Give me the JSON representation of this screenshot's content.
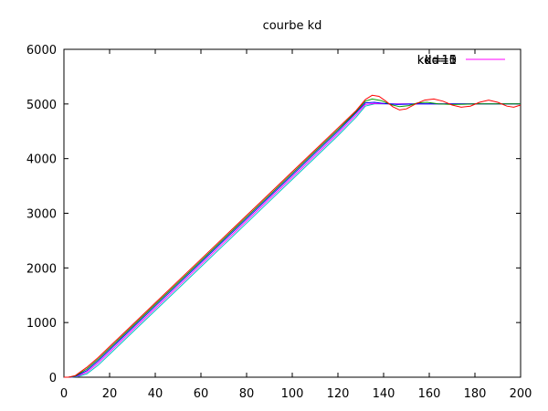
{
  "chart_data": {
    "type": "line",
    "title": "courbe kd",
    "xlabel": "",
    "ylabel": "",
    "xlim": [
      0,
      200
    ],
    "ylim": [
      0,
      6000
    ],
    "x_ticks": [
      0,
      20,
      40,
      60,
      80,
      100,
      120,
      140,
      160,
      180,
      200
    ],
    "y_ticks": [
      0,
      1000,
      2000,
      3000,
      4000,
      5000,
      6000
    ],
    "grid": false,
    "legend_position": "top-right",
    "legend_overlapping_labels": [
      "kd=1",
      "kd=5",
      "kd=10",
      "kd=15"
    ],
    "series": [
      {
        "name": "kd=1",
        "color": "#ff0000",
        "points": [
          [
            0,
            0
          ],
          [
            2,
            0
          ],
          [
            5,
            30
          ],
          [
            10,
            180
          ],
          [
            15,
            360
          ],
          [
            20,
            560
          ],
          [
            30,
            960
          ],
          [
            40,
            1360
          ],
          [
            50,
            1760
          ],
          [
            60,
            2160
          ],
          [
            70,
            2560
          ],
          [
            80,
            2960
          ],
          [
            90,
            3360
          ],
          [
            100,
            3760
          ],
          [
            110,
            4160
          ],
          [
            120,
            4560
          ],
          [
            128,
            4880
          ],
          [
            132,
            5080
          ],
          [
            135,
            5160
          ],
          [
            138,
            5140
          ],
          [
            141,
            5050
          ],
          [
            144,
            4950
          ],
          [
            147,
            4890
          ],
          [
            150,
            4910
          ],
          [
            154,
            5000
          ],
          [
            158,
            5070
          ],
          [
            162,
            5090
          ],
          [
            166,
            5050
          ],
          [
            170,
            4980
          ],
          [
            174,
            4940
          ],
          [
            178,
            4960
          ],
          [
            182,
            5030
          ],
          [
            186,
            5070
          ],
          [
            190,
            5030
          ],
          [
            194,
            4960
          ],
          [
            197,
            4940
          ],
          [
            200,
            4980
          ]
        ]
      },
      {
        "name": "kd=5",
        "color": "#00a000",
        "points": [
          [
            0,
            0
          ],
          [
            2,
            0
          ],
          [
            5,
            20
          ],
          [
            10,
            150
          ],
          [
            15,
            330
          ],
          [
            20,
            530
          ],
          [
            30,
            930
          ],
          [
            40,
            1330
          ],
          [
            50,
            1730
          ],
          [
            60,
            2130
          ],
          [
            70,
            2530
          ],
          [
            80,
            2930
          ],
          [
            90,
            3330
          ],
          [
            100,
            3730
          ],
          [
            110,
            4130
          ],
          [
            120,
            4530
          ],
          [
            128,
            4860
          ],
          [
            132,
            5050
          ],
          [
            135,
            5090
          ],
          [
            139,
            5060
          ],
          [
            143,
            4990
          ],
          [
            147,
            4950
          ],
          [
            151,
            4970
          ],
          [
            155,
            5020
          ],
          [
            159,
            5030
          ],
          [
            164,
            5000
          ],
          [
            170,
            4990
          ],
          [
            180,
            5000
          ],
          [
            190,
            5000
          ],
          [
            200,
            5000
          ]
        ]
      },
      {
        "name": "kd=10",
        "color": "#0000ff",
        "points": [
          [
            0,
            0
          ],
          [
            2,
            0
          ],
          [
            5,
            15
          ],
          [
            10,
            120
          ],
          [
            15,
            300
          ],
          [
            20,
            500
          ],
          [
            30,
            900
          ],
          [
            40,
            1300
          ],
          [
            50,
            1700
          ],
          [
            60,
            2100
          ],
          [
            70,
            2500
          ],
          [
            80,
            2900
          ],
          [
            90,
            3300
          ],
          [
            100,
            3700
          ],
          [
            110,
            4100
          ],
          [
            120,
            4500
          ],
          [
            128,
            4840
          ],
          [
            132,
            5020
          ],
          [
            136,
            5030
          ],
          [
            140,
            5010
          ],
          [
            146,
            4990
          ],
          [
            155,
            5000
          ],
          [
            170,
            5000
          ],
          [
            185,
            5000
          ],
          [
            200,
            5000
          ]
        ]
      },
      {
        "name": "kd=15",
        "color": "#ff00ff",
        "points": [
          [
            0,
            0
          ],
          [
            3,
            0
          ],
          [
            6,
            20
          ],
          [
            10,
            90
          ],
          [
            15,
            260
          ],
          [
            20,
            460
          ],
          [
            30,
            860
          ],
          [
            40,
            1260
          ],
          [
            50,
            1660
          ],
          [
            60,
            2060
          ],
          [
            70,
            2460
          ],
          [
            80,
            2860
          ],
          [
            90,
            3260
          ],
          [
            100,
            3660
          ],
          [
            110,
            4060
          ],
          [
            120,
            4460
          ],
          [
            128,
            4800
          ],
          [
            132,
            4990
          ],
          [
            136,
            5010
          ],
          [
            142,
            5000
          ],
          [
            160,
            5000
          ],
          [
            180,
            5000
          ],
          [
            200,
            5000
          ]
        ]
      },
      {
        "name": "",
        "color": "#00c0c0",
        "points": [
          [
            0,
            0
          ],
          [
            3,
            0
          ],
          [
            6,
            10
          ],
          [
            10,
            60
          ],
          [
            15,
            220
          ],
          [
            20,
            420
          ],
          [
            30,
            820
          ],
          [
            40,
            1220
          ],
          [
            50,
            1620
          ],
          [
            60,
            2020
          ],
          [
            70,
            2420
          ],
          [
            80,
            2820
          ],
          [
            90,
            3220
          ],
          [
            100,
            3620
          ],
          [
            110,
            4020
          ],
          [
            120,
            4420
          ],
          [
            128,
            4760
          ],
          [
            132,
            4960
          ],
          [
            136,
            5000
          ],
          [
            145,
            5000
          ],
          [
            170,
            5000
          ],
          [
            200,
            5000
          ]
        ]
      }
    ]
  }
}
